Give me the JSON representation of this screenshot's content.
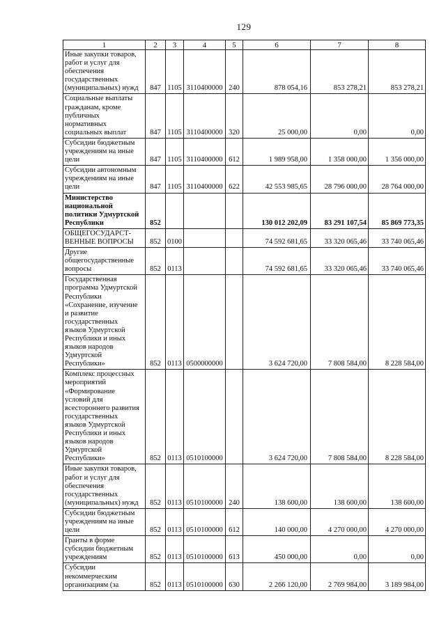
{
  "page": {
    "number": "129"
  },
  "table": {
    "columns": [
      "1",
      "2",
      "3",
      "4",
      "5",
      "6",
      "7",
      "8"
    ],
    "rows": [
      {
        "label": "Иные закупки товаров,\nработ и услуг для\nобеспечения\nгосударственных\n(муниципальных) нужд",
        "c2": "847",
        "c3": "1105",
        "c4": "3110400000",
        "c5": "240",
        "v6": "878 054,16",
        "v7": "853 278,21",
        "v8": "853 278,21",
        "bold": false
      },
      {
        "label": "Социальные выплаты\nгражданам, кроме\nпубличных\nнормативных\nсоциальных выплат",
        "c2": "847",
        "c3": "1105",
        "c4": "3110400000",
        "c5": "320",
        "v6": "25 000,00",
        "v7": "0,00",
        "v8": "0,00",
        "bold": false
      },
      {
        "label": "Субсидии бюджетным\nучреждениям на иные\nцели",
        "c2": "847",
        "c3": "1105",
        "c4": "3110400000",
        "c5": "612",
        "v6": "1 989 958,00",
        "v7": "1 358 000,00",
        "v8": "1 356 000,00",
        "bold": false
      },
      {
        "label": "Субсидии автономным\nучреждениям на иные\nцели",
        "c2": "847",
        "c3": "1105",
        "c4": "3110400000",
        "c5": "622",
        "v6": "42 553 985,65",
        "v7": "28 796 000,00",
        "v8": "28 764 000,00",
        "bold": false
      },
      {
        "label": "Министерство\nнациональной\nполитики Удмуртской\nРеспублики",
        "c2": "852",
        "c3": "",
        "c4": "",
        "c5": "",
        "v6": "130 012 202,09",
        "v7": "83 291 107,54",
        "v8": "85 869 773,35",
        "bold": true
      },
      {
        "label": "ОБЩЕГОСУДАРСТ-\nВЕННЫЕ ВОПРОСЫ",
        "c2": "852",
        "c3": "0100",
        "c4": "",
        "c5": "",
        "v6": "74 592 681,65",
        "v7": "33 320 065,46",
        "v8": "33 740 065,46",
        "bold": false
      },
      {
        "label": "Другие\nобщегосударственные\nвопросы",
        "c2": "852",
        "c3": "0113",
        "c4": "",
        "c5": "",
        "v6": "74 592 681,65",
        "v7": "33 320 065,46",
        "v8": "33 740 065,46",
        "bold": false
      },
      {
        "label": "Государственная\nпрограмма Удмуртской\nРеспублики\n«Сохранение, изучение\nи развитие\nгосударственных\nязыков Удмуртской\nРеспублики и иных\nязыков народов\nУдмуртской\nРеспублики»",
        "c2": "852",
        "c3": "0113",
        "c4": "0500000000",
        "c5": "",
        "v6": "3 624 720,00",
        "v7": "7 808 584,00",
        "v8": "8 228 584,00",
        "bold": false
      },
      {
        "label": "Комплекс процессных\nмероприятий\n«Формирование\nусловий для\nвсестороннего развития\nгосударственных\nязыков Удмуртской\nРеспублики и иных\nязыков народов\nУдмуртской\nРеспублики»",
        "c2": "852",
        "c3": "0113",
        "c4": "0510100000",
        "c5": "",
        "v6": "3 624 720,00",
        "v7": "7 808 584,00",
        "v8": "8 228 584,00",
        "bold": false
      },
      {
        "label": "Иные закупки товаров,\nработ и услуг для\nобеспечения\nгосударственных\n(муниципальных) нужд",
        "c2": "852",
        "c3": "0113",
        "c4": "0510100000",
        "c5": "240",
        "v6": "138 600,00",
        "v7": "138 600,00",
        "v8": "138 600,00",
        "bold": false
      },
      {
        "label": "Субсидии бюджетным\nучреждениям на иные\nцели",
        "c2": "852",
        "c3": "0113",
        "c4": "0510100000",
        "c5": "612",
        "v6": "140 000,00",
        "v7": "4 270 000,00",
        "v8": "4 270 000,00",
        "bold": false
      },
      {
        "label": "Гранты в форме\nсубсидии бюджетным\nучреждениям",
        "c2": "852",
        "c3": "0113",
        "c4": "0510100000",
        "c5": "613",
        "v6": "450 000,00",
        "v7": "0,00",
        "v8": "0,00",
        "bold": false
      },
      {
        "label": "Субсидии\nнекоммерческим\nорганизациям (за",
        "c2": "852",
        "c3": "0113",
        "c4": "0510100000",
        "c5": "630",
        "v6": "2 266 120,00",
        "v7": "2 769 984,00",
        "v8": "3 189 984,00",
        "bold": false
      }
    ]
  }
}
